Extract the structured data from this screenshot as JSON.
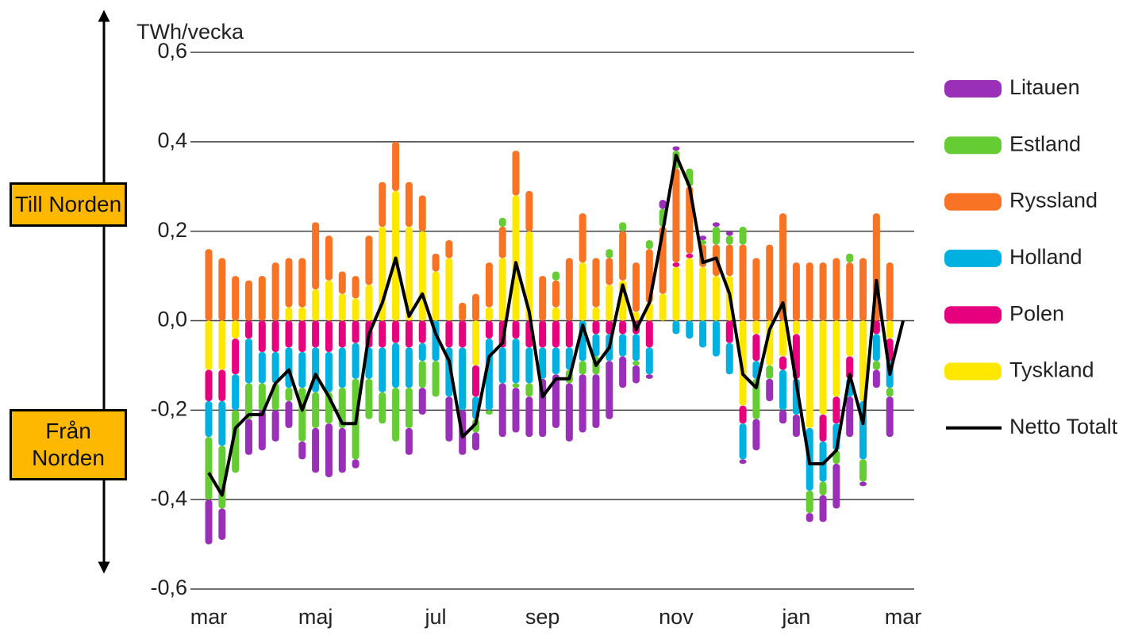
{
  "chart_data": {
    "type": "bar",
    "stacked": true,
    "y_label": "TWh/vecka",
    "annotations": [
      "Till Norden",
      "Från Norden"
    ],
    "categories": [
      "mar",
      null,
      null,
      null,
      null,
      null,
      null,
      null,
      "maj",
      null,
      null,
      null,
      null,
      null,
      null,
      null,
      null,
      "jul",
      null,
      null,
      null,
      null,
      null,
      null,
      null,
      "sep",
      null,
      null,
      null,
      null,
      null,
      null,
      null,
      null,
      null,
      "nov",
      null,
      null,
      null,
      null,
      null,
      null,
      null,
      null,
      "jan",
      null,
      null,
      null,
      null,
      null,
      null,
      null,
      "mar"
    ],
    "ylim": [
      -0.6,
      0.6
    ],
    "yticks": [
      {
        "value": -0.6,
        "label": "-0,6"
      },
      {
        "value": -0.4,
        "label": "-0,4"
      },
      {
        "value": -0.2,
        "label": "-0,2"
      },
      {
        "value": 0,
        "label": "0,0"
      },
      {
        "value": 0.2,
        "label": "0,2"
      },
      {
        "value": 0.4,
        "label": "0,4"
      },
      {
        "value": 0.6,
        "label": "0,6"
      }
    ],
    "grid": true,
    "series": [
      {
        "name": "Tyskland",
        "color": "#ffe800",
        "values": [
          -0.11,
          -0.11,
          -0.04,
          0,
          0,
          0,
          0.03,
          0.03,
          0.07,
          0.09,
          0.06,
          0.05,
          0.08,
          0.21,
          0.29,
          0.21,
          0.2,
          0.11,
          0.14,
          0,
          -0.1,
          0.03,
          0.14,
          0.28,
          0.2,
          0,
          0.03,
          0,
          0.13,
          0.03,
          0.08,
          0.09,
          0.02,
          0.04,
          0.06,
          0.12,
          0.14,
          0.12,
          0.1,
          0.1,
          -0.19,
          -0.03,
          -0.1,
          -0.08,
          -0.03,
          -0.24,
          -0.21,
          -0.17,
          -0.08,
          -0.18,
          0,
          -0.04,
          null
        ]
      },
      {
        "name": "Polen",
        "color": "#e6007e",
        "values": [
          -0.07,
          -0.07,
          -0.08,
          -0.04,
          -0.07,
          -0.07,
          -0.06,
          -0.07,
          -0.06,
          -0.07,
          -0.06,
          -0.05,
          -0.06,
          -0.06,
          -0.05,
          -0.06,
          -0.05,
          0,
          -0.06,
          -0.06,
          -0.07,
          -0.04,
          -0.06,
          -0.04,
          -0.06,
          -0.06,
          -0.06,
          -0.06,
          0,
          -0.03,
          -0.03,
          -0.03,
          -0.03,
          -0.06,
          0,
          0.01,
          0.01,
          0,
          0,
          -0.05,
          -0.04,
          -0.06,
          0,
          -0.03,
          -0.1,
          0,
          -0.06,
          -0.06,
          -0.05,
          0,
          -0.03,
          -0.05,
          null
        ]
      },
      {
        "name": "Holland",
        "color": "#00b0e0",
        "values": [
          -0.08,
          -0.1,
          -0.08,
          -0.1,
          -0.07,
          -0.07,
          -0.09,
          -0.08,
          -0.1,
          -0.09,
          -0.09,
          -0.08,
          -0.07,
          -0.1,
          -0.1,
          -0.09,
          -0.04,
          -0.09,
          -0.11,
          -0.14,
          -0.05,
          -0.16,
          -0.08,
          -0.1,
          -0.08,
          -0.07,
          -0.06,
          -0.05,
          -0.09,
          -0.05,
          -0.06,
          -0.05,
          -0.06,
          -0.06,
          0,
          -0.03,
          -0.04,
          -0.06,
          -0.08,
          -0.07,
          -0.08,
          -0.04,
          0,
          -0.09,
          -0.08,
          -0.14,
          -0.09,
          -0.06,
          -0.04,
          -0.13,
          -0.06,
          -0.06,
          null
        ]
      },
      {
        "name": "Ryssland",
        "color": "#f97325",
        "values": [
          0.16,
          0.14,
          0.1,
          0.09,
          0.1,
          0.13,
          0.11,
          0.11,
          0.15,
          0.1,
          0.05,
          0.05,
          0.11,
          0.1,
          0.11,
          0.1,
          0.08,
          0.04,
          0.04,
          0.04,
          0.06,
          0.1,
          0.07,
          0.1,
          0.09,
          0.1,
          0.06,
          0.14,
          0.11,
          0.11,
          0.06,
          0.11,
          0.11,
          0.12,
          0.15,
          0.21,
          0.15,
          0.05,
          0.07,
          0.07,
          0.17,
          0.14,
          0.17,
          0.24,
          0.13,
          0.13,
          0.13,
          0.14,
          0.13,
          0.14,
          0.24,
          0.13,
          null
        ]
      },
      {
        "name": "Estland",
        "color": "#66cc33",
        "values": [
          -0.14,
          -0.14,
          -0.14,
          -0.08,
          -0.06,
          -0.06,
          -0.03,
          -0.12,
          -0.08,
          -0.07,
          -0.09,
          -0.18,
          -0.09,
          -0.07,
          -0.12,
          -0.09,
          -0.06,
          -0.08,
          0,
          0,
          -0.03,
          -0.01,
          0.02,
          -0.01,
          -0.03,
          0,
          0.02,
          -0.03,
          -0.03,
          -0.04,
          0.02,
          0.02,
          -0.01,
          0.02,
          0.04,
          0.04,
          0.04,
          0.01,
          0.04,
          0.02,
          0.04,
          -0.09,
          -0.03,
          0,
          0,
          -0.05,
          -0.03,
          -0.03,
          0.02,
          -0.05,
          -0.02,
          -0.02,
          null
        ]
      },
      {
        "name": "Litauen",
        "color": "#9b30b8",
        "values": [
          -0.1,
          -0.07,
          0,
          -0.08,
          -0.09,
          -0.07,
          -0.06,
          -0.04,
          -0.1,
          -0.12,
          -0.1,
          -0.02,
          0,
          0,
          0,
          -0.06,
          -0.06,
          0,
          -0.1,
          -0.1,
          -0.04,
          0,
          -0.12,
          -0.1,
          -0.09,
          -0.13,
          -0.12,
          -0.13,
          -0.13,
          -0.12,
          -0.13,
          -0.07,
          -0.04,
          -0.01,
          0.02,
          0.01,
          0,
          0.01,
          0.01,
          0.01,
          -0.01,
          -0.07,
          -0.05,
          -0.03,
          -0.05,
          -0.02,
          -0.06,
          -0.1,
          -0.09,
          -0.01,
          -0.04,
          -0.09,
          null
        ]
      },
      {
        "name": "Netto Totalt",
        "type": "line",
        "color": "#000000",
        "values": [
          -0.34,
          -0.39,
          -0.24,
          -0.21,
          -0.21,
          -0.14,
          -0.11,
          -0.2,
          -0.12,
          -0.17,
          -0.23,
          -0.23,
          -0.03,
          0.04,
          0.14,
          0.01,
          0.06,
          -0.03,
          -0.09,
          -0.26,
          -0.23,
          -0.08,
          -0.05,
          0.13,
          0.02,
          -0.17,
          -0.13,
          -0.13,
          -0.01,
          -0.1,
          -0.06,
          0.08,
          -0.02,
          0.04,
          0.2,
          0.37,
          0.3,
          0.13,
          0.14,
          0.06,
          -0.12,
          -0.15,
          -0.02,
          0.04,
          -0.14,
          -0.32,
          -0.32,
          -0.29,
          -0.12,
          -0.23,
          0.09,
          -0.12,
          0
        ]
      }
    ]
  }
}
